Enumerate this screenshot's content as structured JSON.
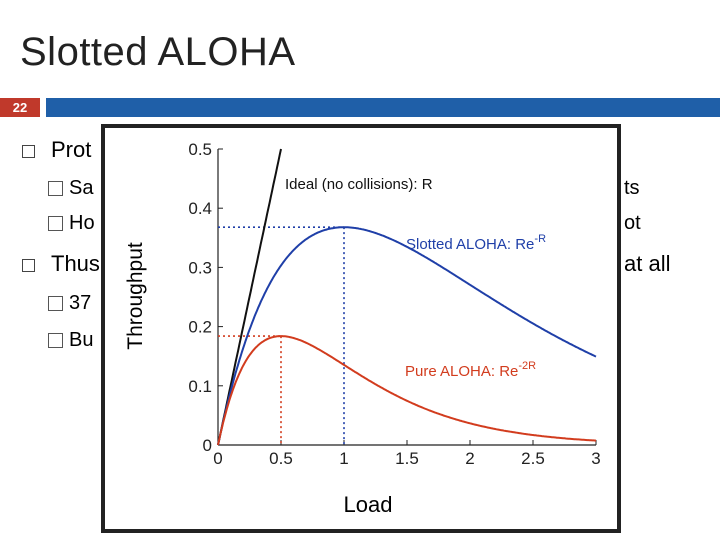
{
  "slide": {
    "title": "Slotted ALOHA",
    "page_number": "22",
    "bullets": [
      {
        "text": "Prot",
        "level": 1
      },
      {
        "text": "Sa",
        "level": 2,
        "tail": "ts"
      },
      {
        "text": "Ho",
        "level": 2,
        "tail": "ot"
      },
      {
        "text": "Thus",
        "level": 1,
        "tail": "at all"
      },
      {
        "text": "37",
        "level": 2
      },
      {
        "text": "Bu",
        "level": 2
      }
    ]
  },
  "chart_data": {
    "type": "line",
    "xlabel": "Load",
    "ylabel": "Throughput",
    "xlim": [
      0,
      3
    ],
    "ylim": [
      0,
      0.5
    ],
    "xticks": [
      "0",
      "0.5",
      "1",
      "1.5",
      "2",
      "2.5",
      "3"
    ],
    "yticks": [
      "0",
      "0.1",
      "0.2",
      "0.3",
      "0.4",
      "0.5"
    ],
    "series": [
      {
        "name": "Ideal (no collisions): R",
        "color": "#111111",
        "formula": "R"
      },
      {
        "name": "Slotted ALOHA: Re^-R",
        "label_main": "Slotted ALOHA: Re",
        "label_exp": "-R",
        "color": "#1f3fa8",
        "formula": "R*exp(-R)"
      },
      {
        "name": "Pure ALOHA: Re^-2R",
        "label_main": "Pure ALOHA: Re",
        "label_exp": "-2R",
        "color": "#d23c1e",
        "formula": "R*exp(-2R)"
      }
    ],
    "annotations": [
      {
        "x": 1,
        "y": 0.368,
        "color": "#1f3fa8"
      },
      {
        "x": 0.5,
        "y": 0.184,
        "color": "#d23c1e"
      }
    ],
    "grid": false
  }
}
